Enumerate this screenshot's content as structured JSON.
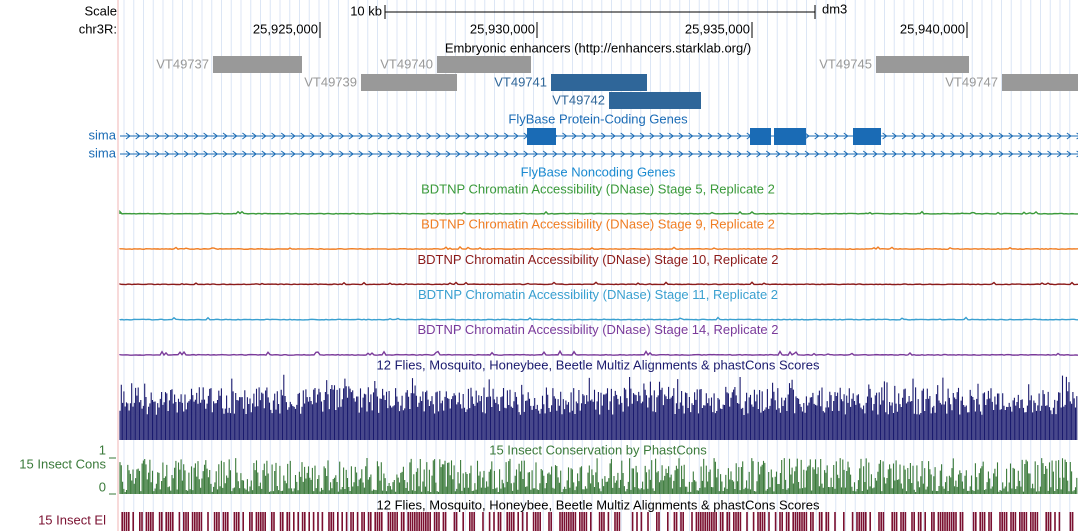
{
  "ruler": {
    "scale_label": "Scale",
    "chrom_label": "chr3R:",
    "scale_text": "10 kb",
    "assembly": "dm3",
    "positions": [
      "25,925,000",
      "25,930,000",
      "25,935,000",
      "25,940,000"
    ]
  },
  "enhancers": {
    "title": "Embryonic enhancers (http://enhancers.starklab.org/)",
    "items": [
      {
        "label": "VT49737"
      },
      {
        "label": "VT49740"
      },
      {
        "label": "VT49739"
      },
      {
        "label": "VT49741"
      },
      {
        "label": "VT49742"
      },
      {
        "label": "VT49745"
      },
      {
        "label": "VT49747"
      }
    ]
  },
  "genes": {
    "title": "FlyBase Protein-Coding Genes",
    "names": [
      "sima",
      "sima"
    ]
  },
  "noncoding": {
    "title": "FlyBase Noncoding Genes"
  },
  "dnase": [
    {
      "title": "BDTNP Chromatin Accessibility (DNase) Stage 5, Replicate 2",
      "color": "#3a9a3a"
    },
    {
      "title": "BDTNP Chromatin Accessibility (DNase) Stage 9, Replicate 2",
      "color": "#f07d22"
    },
    {
      "title": "BDTNP Chromatin Accessibility (DNase) Stage 10, Replicate 2",
      "color": "#8b1a1a"
    },
    {
      "title": "BDTNP Chromatin Accessibility (DNase) Stage 11, Replicate 2",
      "color": "#3aa0d0"
    },
    {
      "title": "BDTNP Chromatin Accessibility (DNase) Stage 14, Replicate 2",
      "color": "#7a3a9a"
    }
  ],
  "multiz": {
    "title": "12 Flies, Mosquito, Honeybee, Beetle Multiz Alignments & phastCons Scores"
  },
  "cons": {
    "label": "15 Insect Cons",
    "title": "15 Insect Conservation by PhastCons",
    "ymax": "1",
    "ymin": "0"
  },
  "elements": {
    "title": "12 Flies, Mosquito, Honeybee, Beetle Multiz Alignments & phastCons Scores",
    "label": "15 Insect El"
  }
}
